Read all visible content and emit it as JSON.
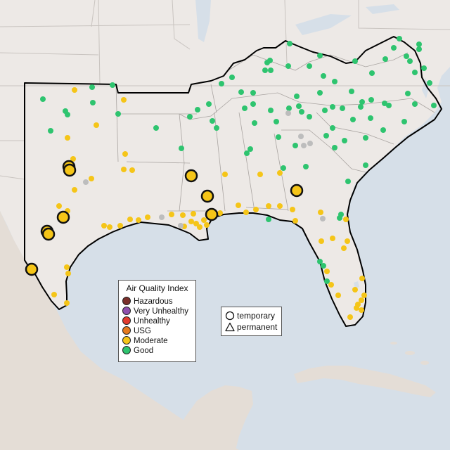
{
  "legend": {
    "title": "Air Quality Index",
    "categories": [
      {
        "label": "Hazardous",
        "color": "#7a2f2a"
      },
      {
        "label": "Very Unhealthy",
        "color": "#8e4fae"
      },
      {
        "label": "Unhealthy",
        "color": "#e23b2e"
      },
      {
        "label": "USG",
        "color": "#e67a1e"
      },
      {
        "label": "Moderate",
        "color": "#f5c518"
      },
      {
        "label": "Good",
        "color": "#2ec46f"
      }
    ]
  },
  "type_legend": {
    "items": [
      {
        "label": "temporary",
        "icon": "circle-icon"
      },
      {
        "label": "permanent",
        "icon": "triangle-icon"
      }
    ]
  },
  "colors": {
    "water": "#d6dfe8",
    "land": "#ede9e6",
    "no_data": "#bdbdbd"
  }
}
